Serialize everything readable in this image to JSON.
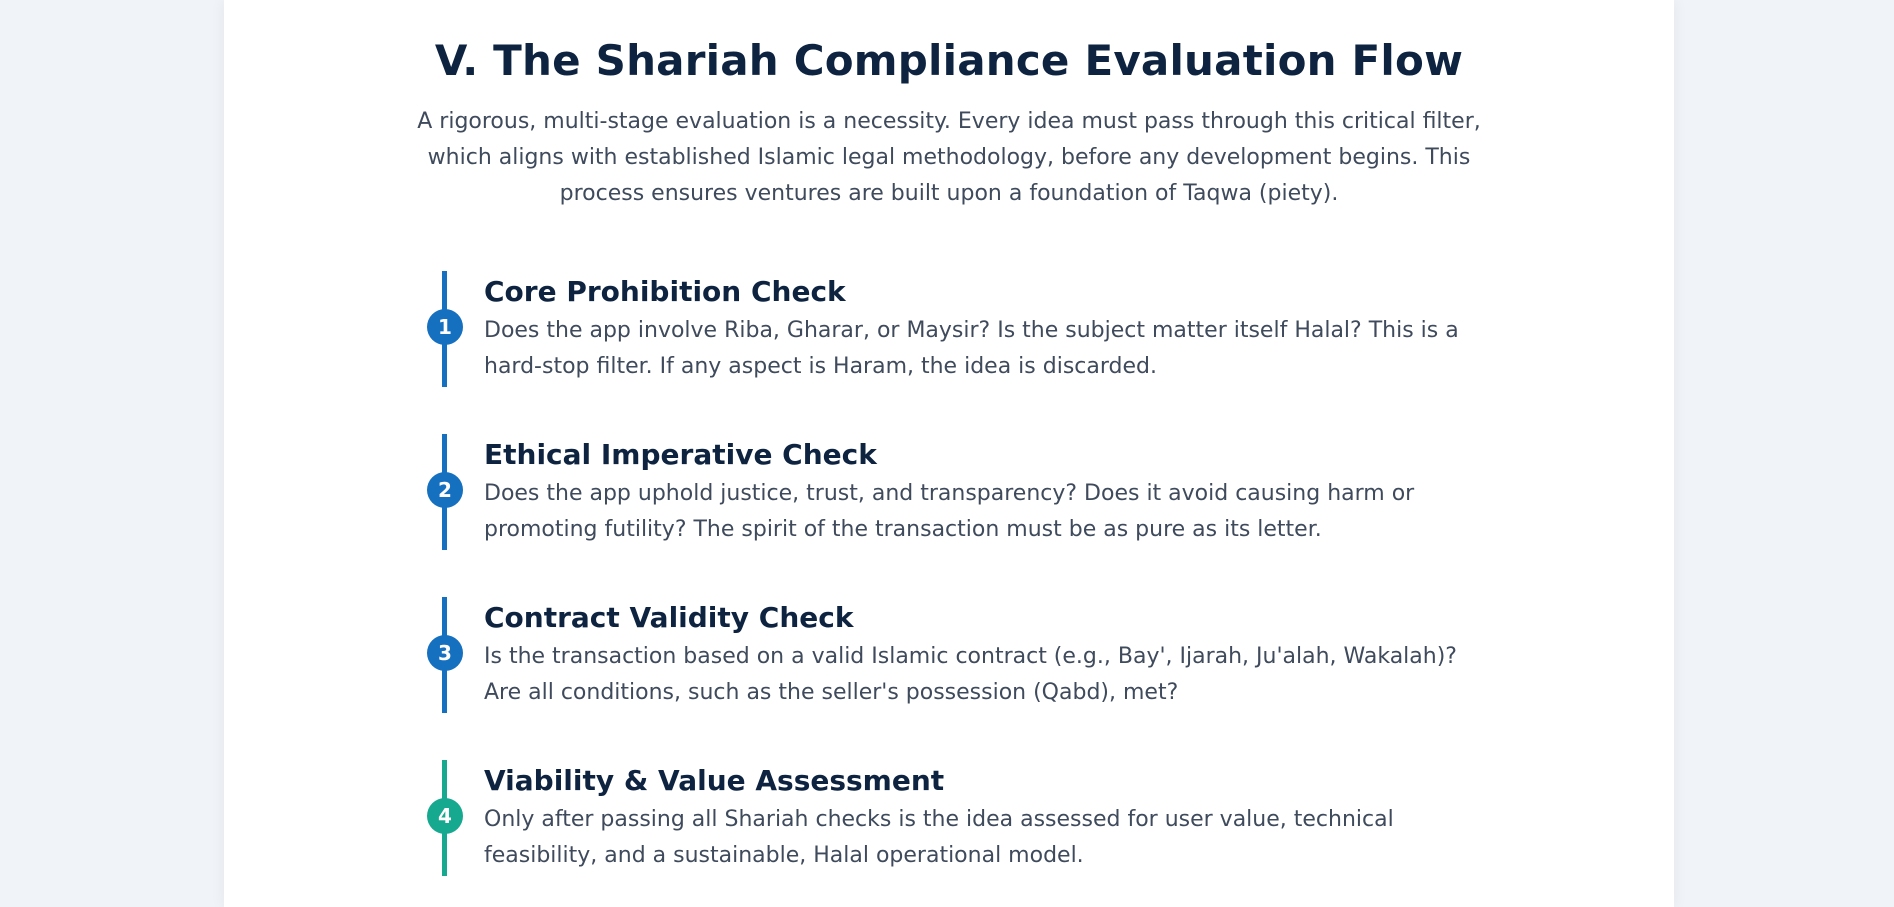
{
  "header": {
    "title": "V. The Shariah Compliance Evaluation Flow",
    "intro": "A rigorous, multi-stage evaluation is a necessity. Every idea must pass through this critical filter, which aligns with established Islamic legal methodology, before any development begins. This process ensures ventures are built upon a foundation of Taqwa (piety)."
  },
  "colors": {
    "primary": "#1570c0",
    "final": "#17a890",
    "heading": "#0d2340",
    "body": "#3f4b5c"
  },
  "steps": [
    {
      "number": "1",
      "title": "Core Prohibition Check",
      "description": "Does the app involve Riba, Gharar, or Maysir? Is the subject matter itself Halal? This is a hard-stop filter. If any aspect is Haram, the idea is discarded."
    },
    {
      "number": "2",
      "title": "Ethical Imperative Check",
      "description": "Does the app uphold justice, trust, and transparency? Does it avoid causing harm or promoting futility? The spirit of the transaction must be as pure as its letter."
    },
    {
      "number": "3",
      "title": "Contract Validity Check",
      "description": "Is the transaction based on a valid Islamic contract (e.g., Bay', Ijarah, Ju'alah, Wakalah)? Are all conditions, such as the seller's possession (Qabd), met?"
    },
    {
      "number": "4",
      "title": "Viability & Value Assessment",
      "description": "Only after passing all Shariah checks is the idea assessed for user value, technical feasibility, and a sustainable, Halal operational model."
    }
  ]
}
